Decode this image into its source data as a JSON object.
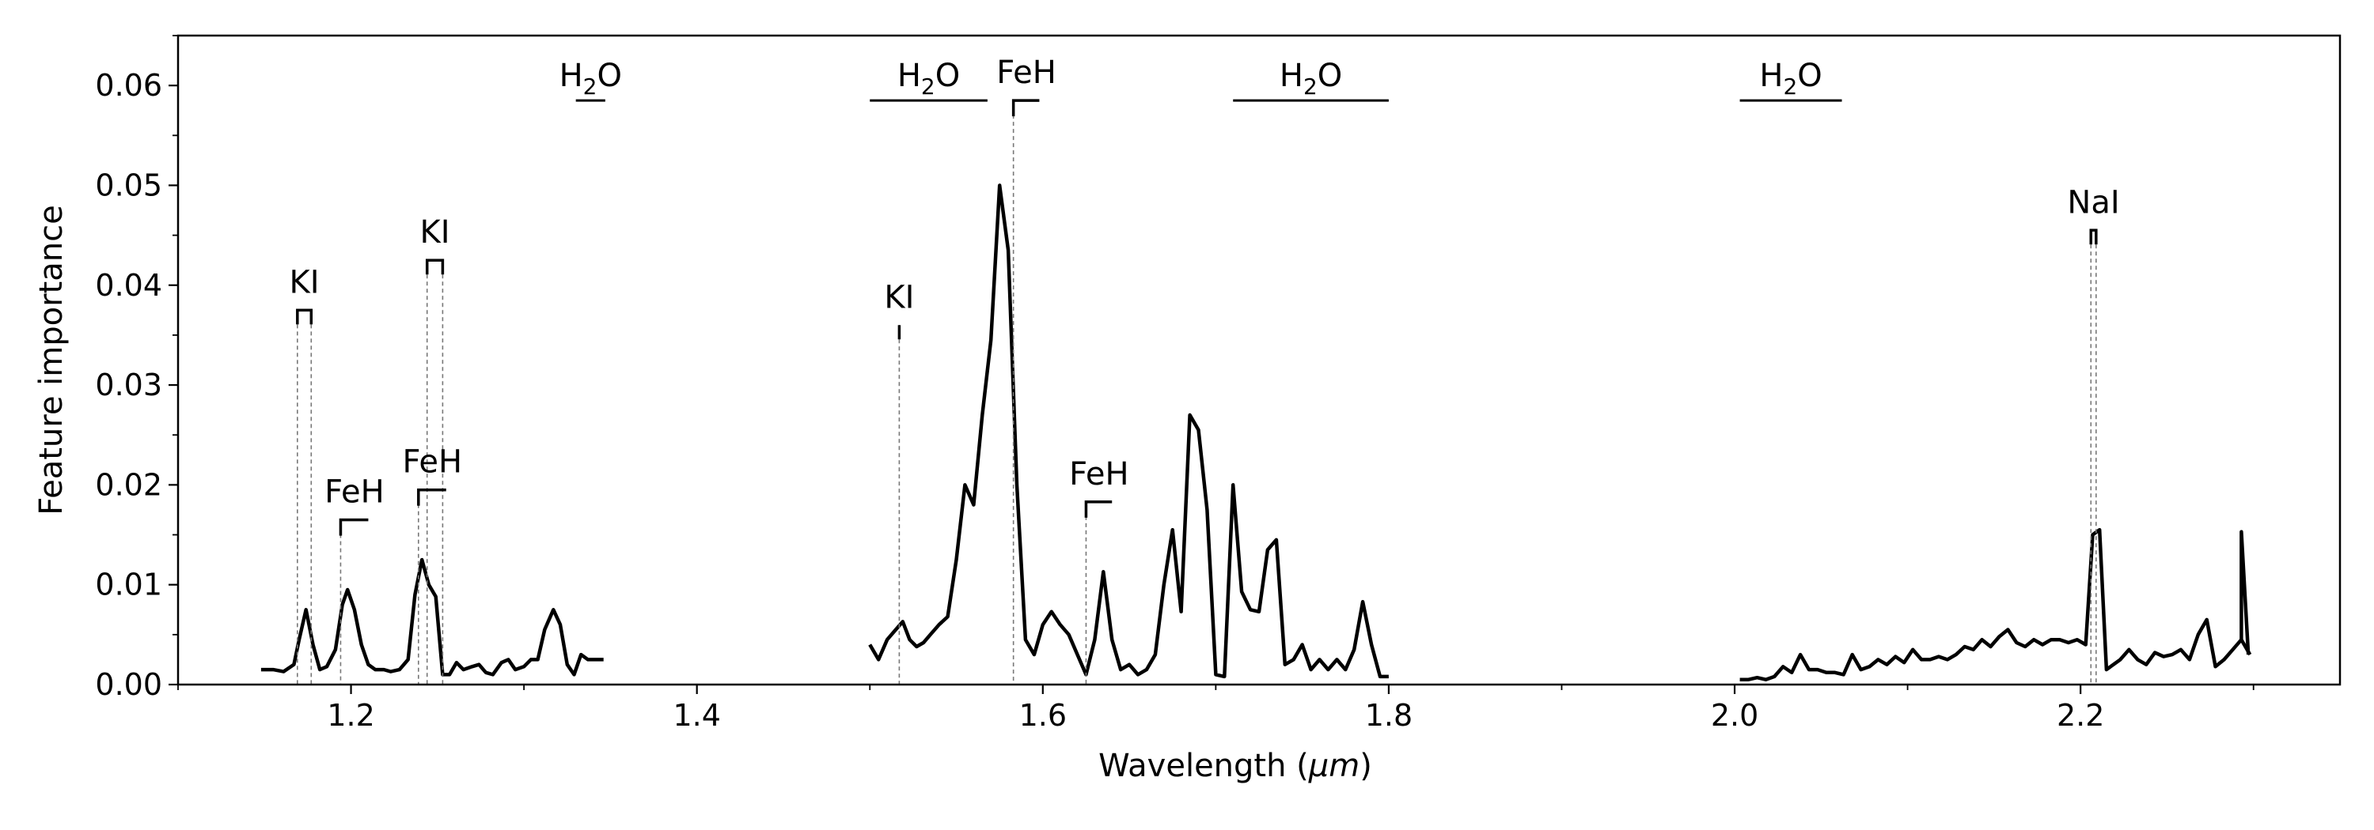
{
  "chart_data": {
    "type": "line",
    "xlabel_prefix": "Wavelength (",
    "xlabel_unit": "μm",
    "xlabel_suffix": ")",
    "ylabel": "Feature importance",
    "xlim": [
      1.1,
      3.35
    ],
    "ylim": [
      0.0,
      0.065
    ],
    "x_ticks": [
      1.2,
      1.4,
      1.6,
      1.8,
      2.0,
      2.2
    ],
    "x_tick_labels": [
      "1.2",
      "1.4",
      "1.6",
      "1.8",
      "2.0",
      "2.2"
    ],
    "y_ticks": [
      0.0,
      0.01,
      0.02,
      0.03,
      0.04,
      0.05,
      0.06
    ],
    "y_tick_labels": [
      "0.00",
      "0.01",
      "0.02",
      "0.03",
      "0.04",
      "0.05",
      "0.06"
    ],
    "line_color": "#000000",
    "segments": [
      {
        "x": [
          1.148,
          1.155,
          1.161,
          1.167,
          1.17,
          1.174,
          1.178,
          1.182,
          1.186,
          1.191,
          1.195,
          1.198,
          1.202,
          1.206,
          1.21,
          1.214,
          1.219,
          1.223,
          1.228,
          1.233,
          1.237,
          1.241,
          1.245,
          1.249,
          1.253,
          1.257,
          1.261,
          1.265,
          1.27,
          1.274,
          1.278,
          1.282,
          1.287,
          1.291,
          1.295,
          1.3,
          1.304,
          1.308,
          1.312,
          1.317,
          1.321,
          1.325,
          1.329,
          1.333,
          1.337,
          1.341,
          1.346
        ],
        "y": [
          0.0015,
          0.0015,
          0.0013,
          0.002,
          0.0045,
          0.0075,
          0.004,
          0.0015,
          0.0018,
          0.0035,
          0.008,
          0.0095,
          0.0075,
          0.004,
          0.002,
          0.0015,
          0.0015,
          0.0013,
          0.0015,
          0.0025,
          0.009,
          0.0125,
          0.01,
          0.0088,
          0.001,
          0.001,
          0.0022,
          0.0015,
          0.0018,
          0.002,
          0.0012,
          0.001,
          0.0022,
          0.0025,
          0.0015,
          0.0018,
          0.0025,
          0.0025,
          0.0055,
          0.0075,
          0.006,
          0.002,
          0.001,
          0.003,
          0.0025,
          0.0025,
          0.0025
        ]
      },
      {
        "x": [
          1.5,
          1.505,
          1.51,
          1.515,
          1.519,
          1.523,
          1.527,
          1.531,
          1.535,
          1.54,
          1.545,
          1.55,
          1.555,
          1.56,
          1.565,
          1.57,
          1.575,
          1.58,
          1.585,
          1.59,
          1.595,
          1.6,
          1.605,
          1.61,
          1.615,
          1.62,
          1.625,
          1.63,
          1.635,
          1.64,
          1.645,
          1.65,
          1.655,
          1.66,
          1.665,
          1.67,
          1.675,
          1.68,
          1.685,
          1.69,
          1.695,
          1.7,
          1.705,
          1.71,
          1.715,
          1.72,
          1.725,
          1.73,
          1.735,
          1.74,
          1.745,
          1.75,
          1.755,
          1.76,
          1.765,
          1.77,
          1.775,
          1.78,
          1.785,
          1.79,
          1.795,
          1.8
        ],
        "y": [
          0.004,
          0.0025,
          0.0045,
          0.0055,
          0.0063,
          0.0045,
          0.0038,
          0.0042,
          0.005,
          0.006,
          0.0068,
          0.0125,
          0.02,
          0.018,
          0.027,
          0.0345,
          0.05,
          0.0435,
          0.02,
          0.0045,
          0.003,
          0.006,
          0.0073,
          0.006,
          0.005,
          0.003,
          0.001,
          0.0045,
          0.0113,
          0.0045,
          0.0015,
          0.002,
          0.001,
          0.0015,
          0.003,
          0.01,
          0.0155,
          0.0073,
          0.027,
          0.0255,
          0.0175,
          0.001,
          0.0008,
          0.02,
          0.0093,
          0.0075,
          0.0073,
          0.0135,
          0.0145,
          0.002,
          0.0025,
          0.004,
          0.0015,
          0.0025,
          0.0015,
          0.0025,
          0.0015,
          0.0035,
          0.0083,
          0.004,
          0.0008,
          0.0008
        ],
        "note": ""
      },
      {
        "x": [
          2.003,
          2.008,
          2.013,
          2.018,
          2.023,
          2.028,
          2.033,
          2.038,
          2.043,
          2.048,
          2.053,
          2.058,
          2.063,
          2.068,
          2.073,
          2.078,
          2.083,
          2.088,
          2.093,
          2.098,
          2.103,
          2.108,
          2.113,
          2.118,
          2.123,
          2.128,
          2.133,
          2.138,
          2.143,
          2.148,
          2.153,
          2.158,
          2.163,
          2.168,
          2.173,
          2.178,
          2.183,
          2.188,
          2.193,
          2.198,
          2.203,
          2.207,
          2.211,
          2.215,
          2.219,
          2.223,
          2.228,
          2.233,
          2.238,
          2.243,
          2.248,
          2.253,
          2.258,
          2.263,
          2.268,
          2.273,
          2.278,
          2.283,
          2.288,
          2.293,
          2.298
        ],
        "y": [
          0.0005,
          0.0005,
          0.0007,
          0.0005,
          0.0008,
          0.0018,
          0.0012,
          0.003,
          0.0015,
          0.0015,
          0.0012,
          0.0012,
          0.001,
          0.003,
          0.0015,
          0.0018,
          0.0025,
          0.002,
          0.0028,
          0.0022,
          0.0035,
          0.0025,
          0.0025,
          0.0028,
          0.0025,
          0.003,
          0.0038,
          0.0035,
          0.0045,
          0.0038,
          0.0048,
          0.0055,
          0.0042,
          0.0038,
          0.0045,
          0.004,
          0.0045,
          0.0045,
          0.0042,
          0.0045,
          0.004,
          0.015,
          0.0155,
          0.0015,
          0.002,
          0.0025,
          0.0035,
          0.0025,
          0.002,
          0.0032,
          0.0028,
          0.003,
          0.0035,
          0.0025,
          0.005,
          0.0065,
          0.0018,
          0.0025,
          0.0035,
          0.0045,
          0.003
        ]
      }
    ],
    "extra_points": [
      [
        2.293,
        0.0153
      ],
      [
        2.297,
        0.003
      ]
    ],
    "annotations": {
      "bands": [
        {
          "label_main": "H",
          "label_sub": "2",
          "label_end": "O",
          "x0": 1.33,
          "x1": 1.347,
          "y": 0.0585
        },
        {
          "label_main": "H",
          "label_sub": "2",
          "label_end": "O",
          "x0": 1.5,
          "x1": 1.568,
          "y": 0.0585
        },
        {
          "label_main": "H",
          "label_sub": "2",
          "label_end": "O",
          "x0": 1.71,
          "x1": 1.8,
          "y": 0.0585
        },
        {
          "label_main": "H",
          "label_sub": "2",
          "label_end": "O",
          "x0": 2.003,
          "x1": 2.062,
          "y": 0.0585
        }
      ],
      "lines": [
        {
          "label": "KI",
          "x": [
            1.169,
            1.177
          ],
          "top": 0.0375,
          "dashed": true
        },
        {
          "label": "FeH",
          "x": [
            1.194
          ],
          "top": 0.0165,
          "bracket_end": 1.21,
          "dashed": true
        },
        {
          "label": "KI",
          "x": [
            1.244,
            1.253
          ],
          "top": 0.0425,
          "dashed": true
        },
        {
          "label": "FeH",
          "x": [
            1.239
          ],
          "top": 0.0195,
          "bracket_end": 1.255,
          "dashed": true
        },
        {
          "label": "KI",
          "x": [
            1.517
          ],
          "top": 0.036,
          "dashed": true,
          "tick_only": true
        },
        {
          "label": "FeH",
          "x": [
            1.583
          ],
          "top": 0.0585,
          "bracket_end": 1.598,
          "dashed": true
        },
        {
          "label": "FeH",
          "x": [
            1.625
          ],
          "top": 0.0183,
          "bracket_end": 1.64,
          "dashed": true
        },
        {
          "label": "NaI",
          "x": [
            2.206,
            2.209
          ],
          "top": 0.0455,
          "dashed": true
        }
      ]
    }
  }
}
